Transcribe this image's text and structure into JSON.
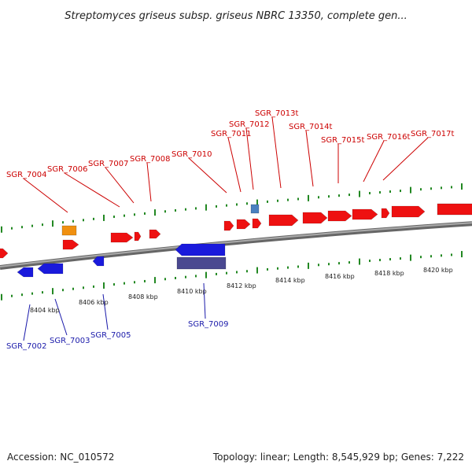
{
  "title": "Streptomyces griseus subsp. griseus NBRC 13350, complete gen...",
  "footer": {
    "accession": "Accession: NC_010572",
    "summary": "Topology: linear; Length: 8,545,929 bp; Genes: 7,222"
  },
  "colors": {
    "forward": "#ee1111",
    "reverse": "#1a1adc",
    "orange": "#f09010",
    "steel": "#4a80c0",
    "purple": "#4a4890",
    "tick": "#228822",
    "backbone": "#888888",
    "label_forward": "#cc0000",
    "label_reverse": "#1a1aaa"
  },
  "axis": {
    "unit": "kbp",
    "ticks": [
      {
        "value": 8404,
        "label": "8404 kbp"
      },
      {
        "value": 8406,
        "label": "8406 kbp"
      },
      {
        "value": 8408,
        "label": "8408 kbp"
      },
      {
        "value": 8410,
        "label": "8410 kbp"
      },
      {
        "value": 8412,
        "label": "8412 kbp"
      },
      {
        "value": 8414,
        "label": "8414 kbp"
      },
      {
        "value": 8416,
        "label": "8416 kbp"
      },
      {
        "value": 8418,
        "label": "8418 kbp"
      },
      {
        "value": 8420,
        "label": "8420 kbp"
      }
    ]
  },
  "genes_forward": [
    {
      "name": "SGR_7004"
    },
    {
      "name": "SGR_7006"
    },
    {
      "name": "SGR_7007"
    },
    {
      "name": "SGR_7008"
    },
    {
      "name": "SGR_7010"
    },
    {
      "name": "SGR_7011"
    },
    {
      "name": "SGR_7012"
    },
    {
      "name": "SGR_7013t"
    },
    {
      "name": "SGR_7014t"
    },
    {
      "name": "SGR_7015t"
    },
    {
      "name": "SGR_7016t"
    },
    {
      "name": "SGR_7017t"
    }
  ],
  "genes_reverse": [
    {
      "name": "SGR_7002"
    },
    {
      "name": "SGR_7003"
    },
    {
      "name": "SGR_7005"
    },
    {
      "name": "SGR_7009"
    }
  ]
}
